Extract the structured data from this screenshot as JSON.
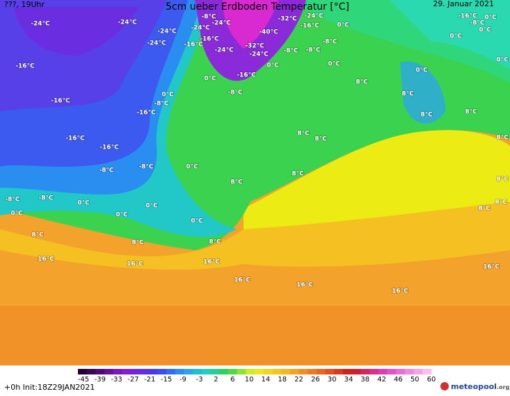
{
  "header": {
    "left": "???, 19Uhr",
    "title": "5cm ueber Erdboden Temperatur [°C]",
    "date": "29. Januar 2021"
  },
  "map_labels": [
    "-24°C",
    "-24°C",
    "-24°C",
    "-24°C",
    "-8°C",
    "-24°C",
    "-32°C",
    "-24°C",
    "-16°C",
    "0°C",
    "-16°C",
    "-8°C",
    "0°C",
    "0°C",
    "0°C",
    "-24°C",
    "-16°C",
    "-16°C",
    "-24°C",
    "-40°C",
    "-32°C",
    "-24°C",
    "-8°C",
    "-8°C",
    "-8°C",
    "0°C",
    "0°C",
    "0°C",
    "-16°C",
    "0°C",
    "-16°C",
    "-8°C",
    "8°C",
    "0°C",
    "8°C",
    "0°C",
    "-8°C",
    "-16°C",
    "-16°C",
    "8°C",
    "8°C",
    "8°C",
    "-16°C",
    "-16°C",
    "8°C",
    "8°C",
    "0°C",
    "-8°C",
    "-8°C",
    "8°C",
    "8°C",
    "8°C",
    "-8°C",
    "-8°C",
    "0°C",
    "0°C",
    "0°C",
    "0°C",
    "0°C",
    "8°C",
    "8°C",
    "8°C",
    "8°C",
    "8°C",
    "16°C",
    "16°C",
    "16°C",
    "16°C",
    "16°C",
    "16°C",
    "16°C"
  ],
  "colorbar": {
    "ticks": [
      -45,
      -39,
      -33,
      -27,
      -21,
      -15,
      -9,
      -3,
      2,
      6,
      10,
      14,
      18,
      22,
      26,
      30,
      34,
      38,
      42,
      46,
      50,
      60
    ]
  },
  "footer": {
    "init": "+0h  Init:18Z29JAN2021",
    "logo": "meteopool",
    "logo_suffix": ".org"
  }
}
